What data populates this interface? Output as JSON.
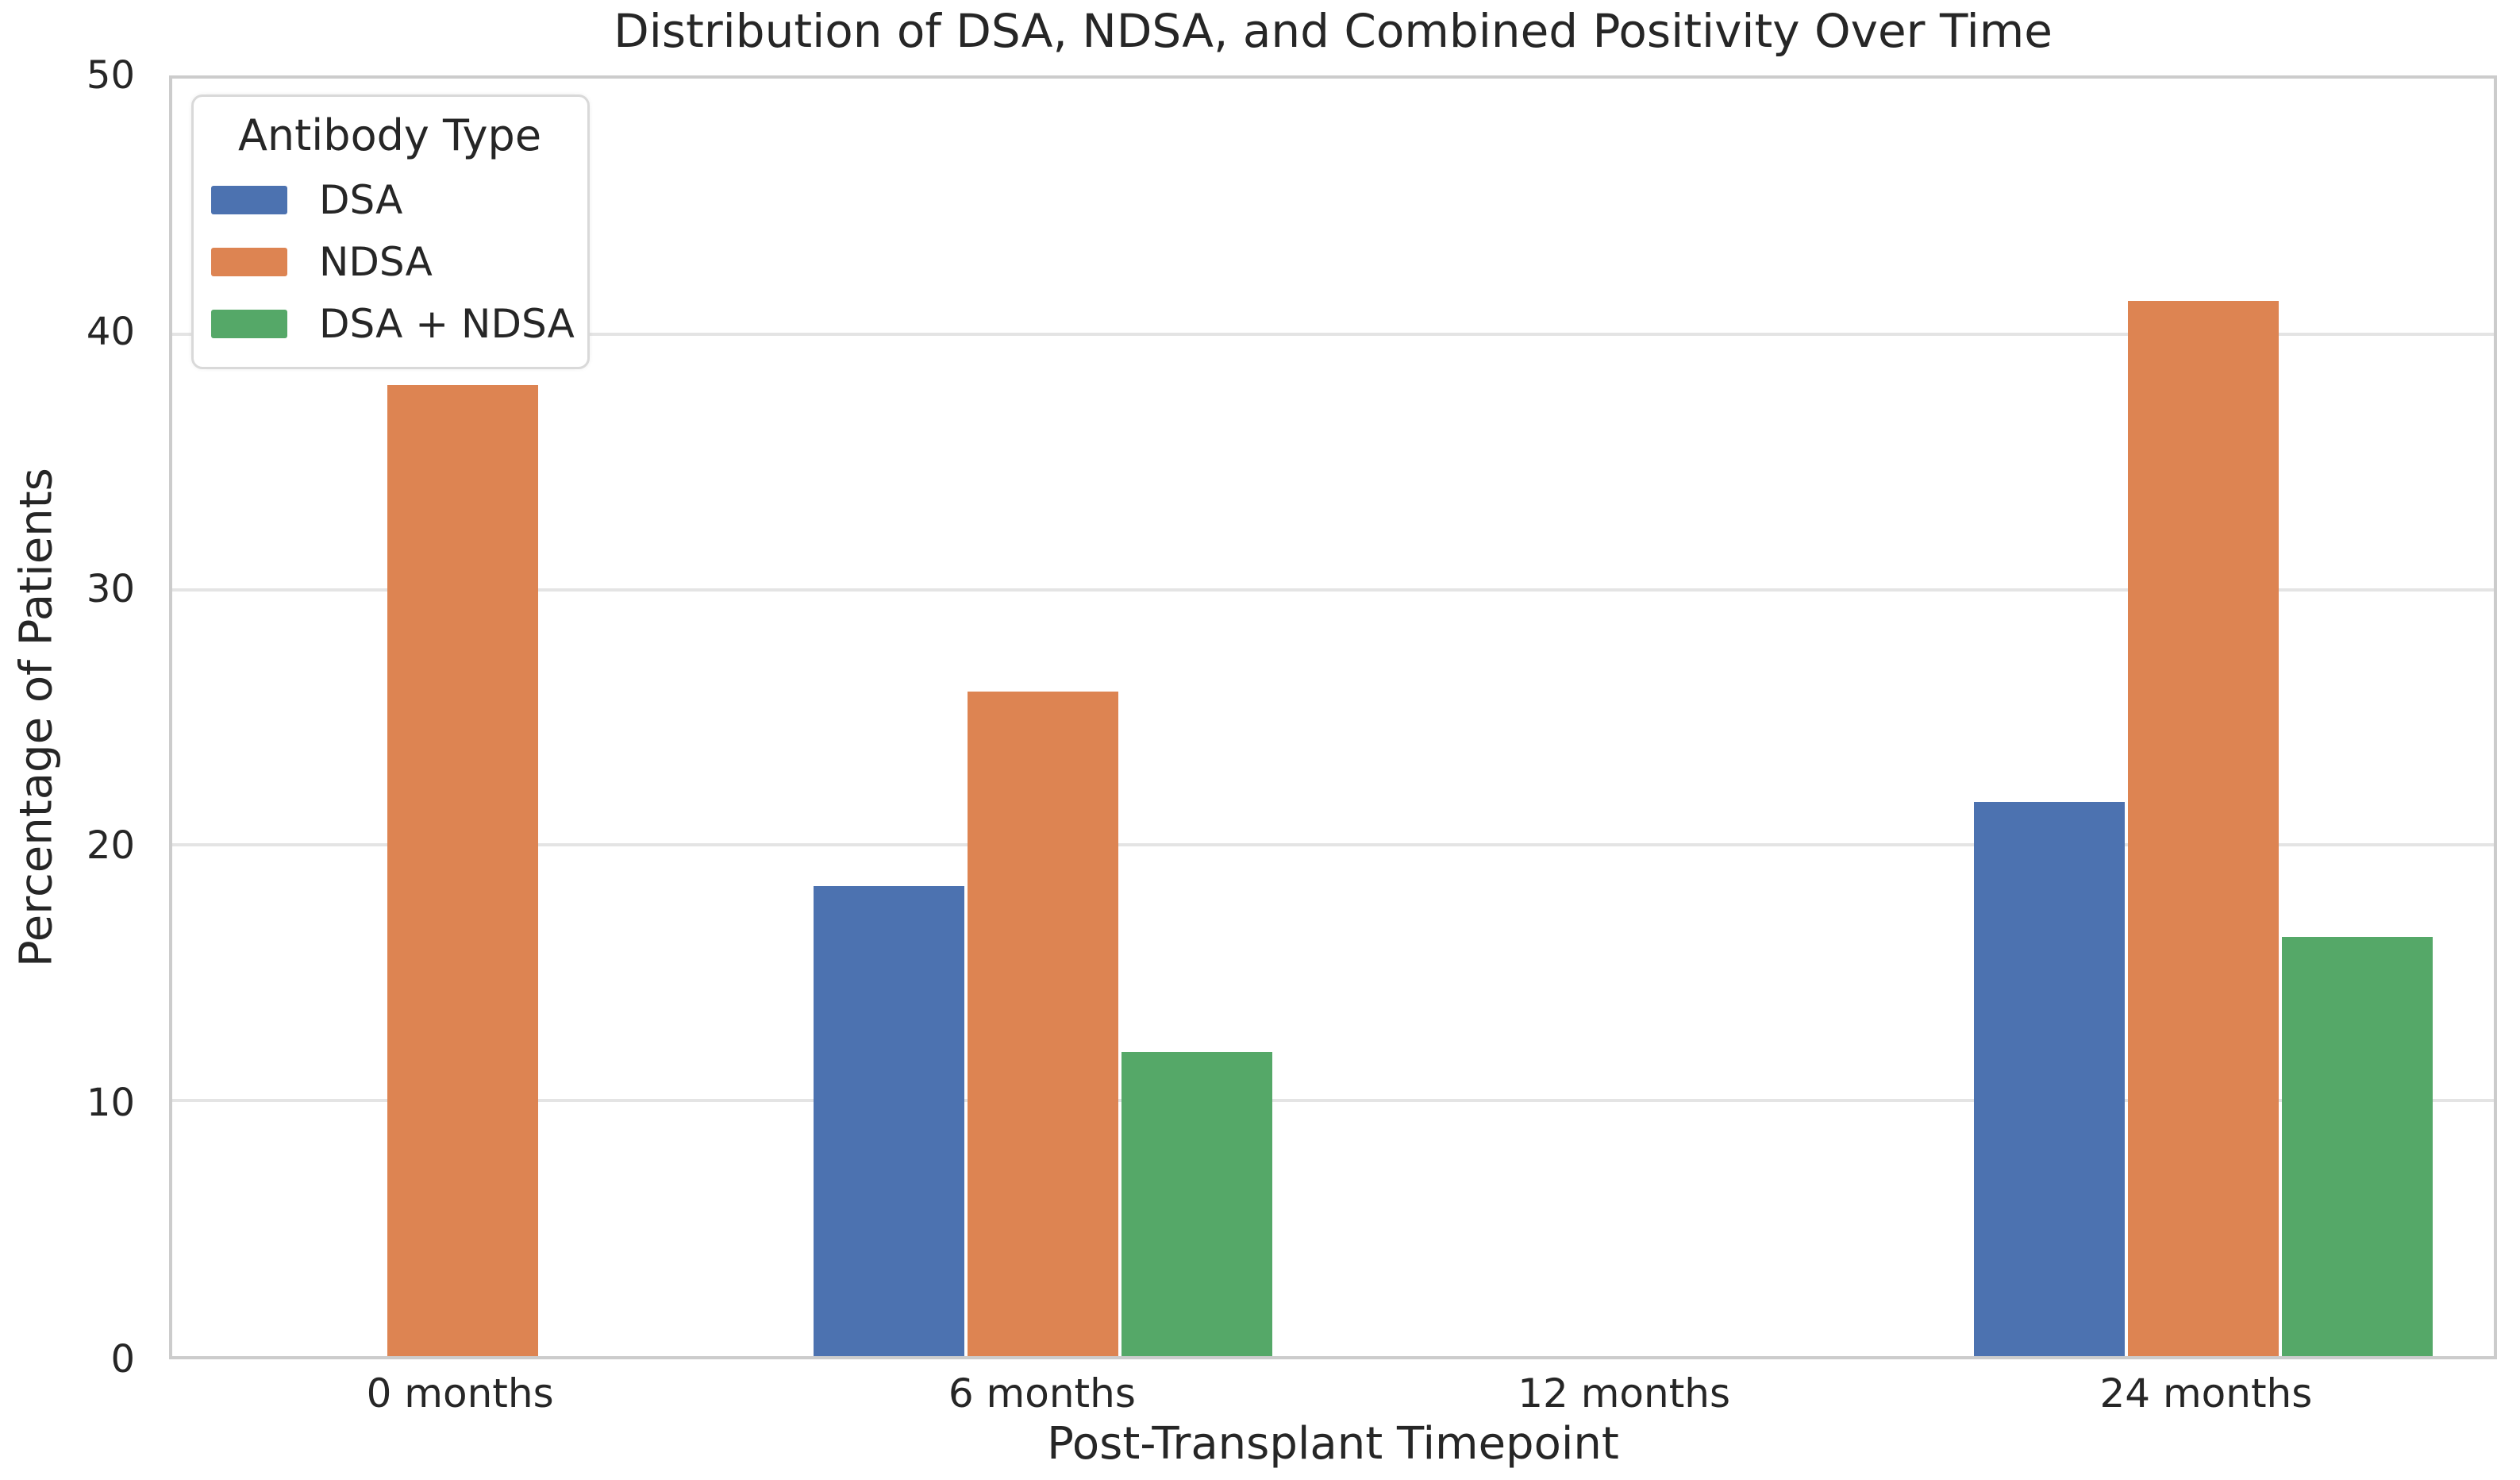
{
  "chart_data": {
    "type": "bar",
    "title": "Distribution of DSA, NDSA, and Combined Positivity Over Time",
    "xlabel": "Post-Transplant Timepoint",
    "ylabel": "Percentage of Patients",
    "categories": [
      "0 months",
      "6 months",
      "12 months",
      "24 months"
    ],
    "series": [
      {
        "name": "DSA",
        "color": "#4C72B0",
        "values": [
          0,
          18.4,
          0,
          21.7
        ]
      },
      {
        "name": "NDSA",
        "color": "#DD8452",
        "values": [
          38.0,
          26.0,
          0,
          41.3
        ]
      },
      {
        "name": "DSA + NDSA",
        "color": "#55A868",
        "values": [
          0,
          11.9,
          0,
          16.4
        ]
      }
    ],
    "ylim": [
      0,
      50
    ],
    "yticks": [
      0,
      10,
      20,
      30,
      40,
      50
    ],
    "grid": "horizontal",
    "legend": {
      "title": "Antibody Type",
      "position": "upper-left"
    },
    "background_color": "#ffffff",
    "grid_color": "#e4e4e4",
    "text_color": "#262626"
  }
}
